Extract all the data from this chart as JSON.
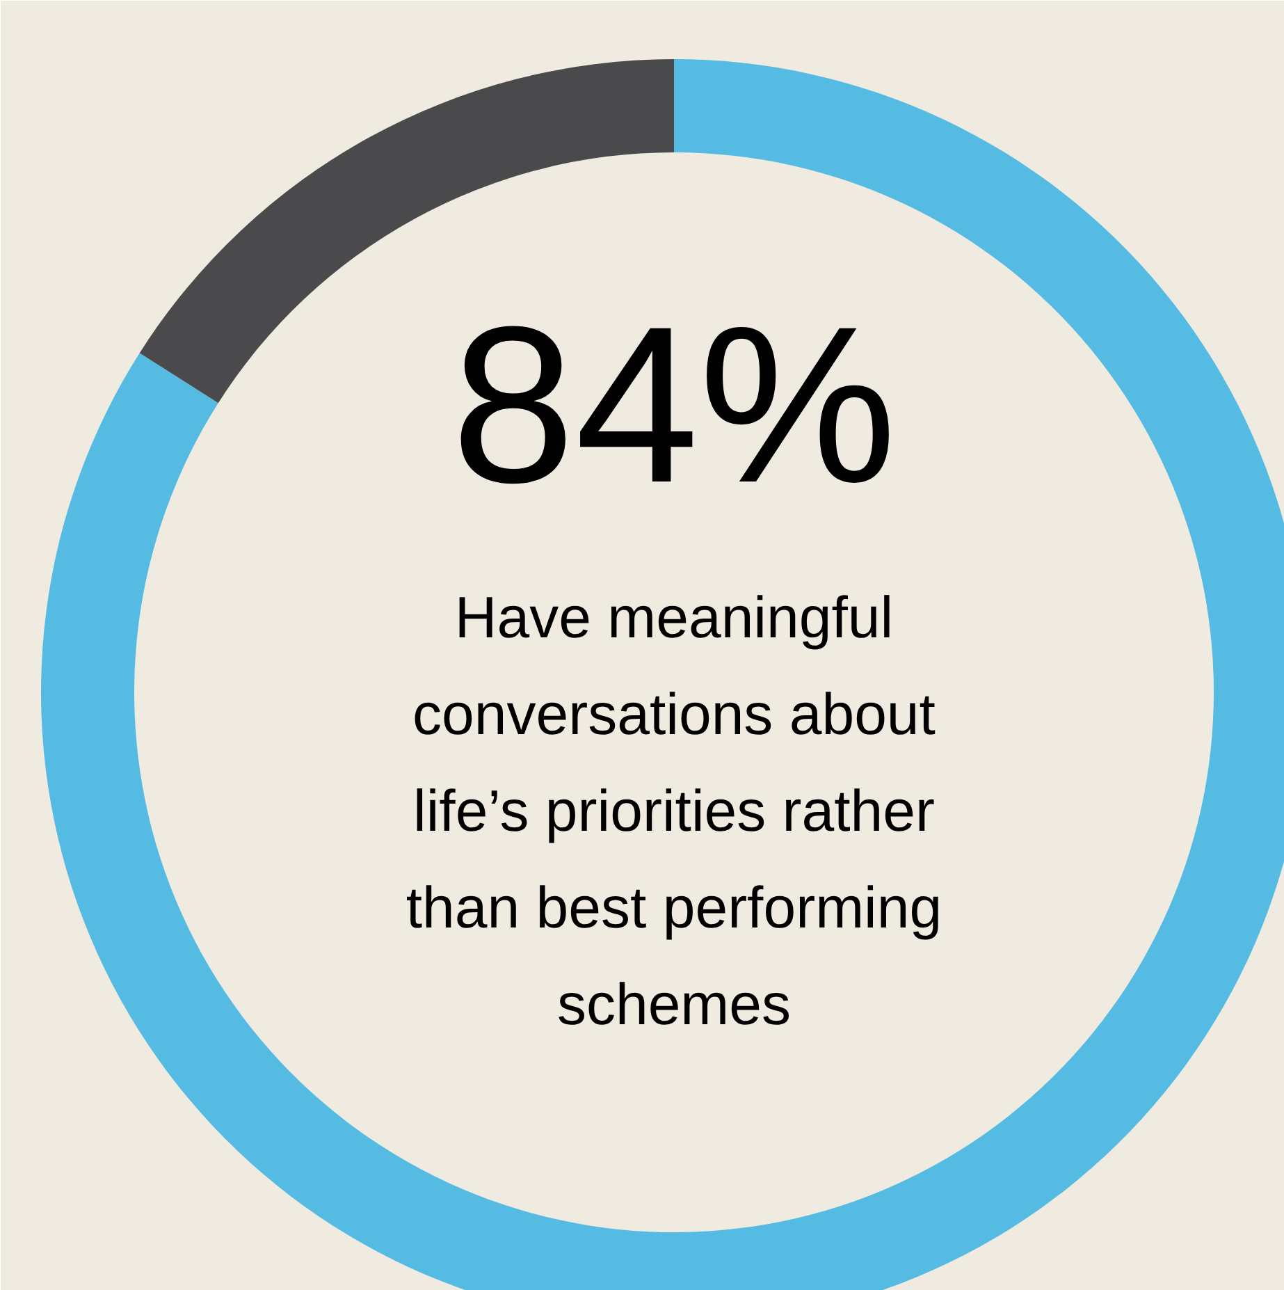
{
  "chart_data": {
    "type": "donut",
    "categories": [
      null,
      null
    ],
    "values": [
      84,
      16
    ],
    "colors": [
      "#56bbe2",
      "#4a4a4d"
    ],
    "annotations": [
      "84%",
      "Have meaningful conversations about life’s priorities rather than best performing schemes"
    ]
  }
}
